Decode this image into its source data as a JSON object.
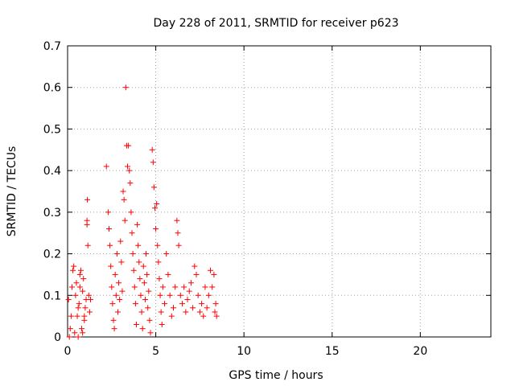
{
  "chart_data": {
    "type": "scatter",
    "title": "Day 228 of 2011, SRMTID for receiver p623",
    "xlabel": "GPS time / hours",
    "ylabel": "SRMTID / TECUs",
    "xlim": [
      0,
      24
    ],
    "ylim": [
      0,
      0.7
    ],
    "xticks": [
      0,
      5,
      10,
      15,
      20
    ],
    "xtick_labels": [
      "0",
      "5",
      "10",
      "15",
      "20"
    ],
    "yticks": [
      0,
      0.1,
      0.2,
      0.3,
      0.4,
      0.5,
      0.6,
      0.7
    ],
    "ytick_labels": [
      "0",
      "0.1",
      "0.2",
      "0.3",
      "0.4",
      "0.5",
      "0.6",
      "0.7"
    ],
    "grid": true,
    "marker": "+",
    "color": "#ff0000",
    "series": [
      {
        "name": "SRMTID",
        "points": [
          [
            0.05,
            0.09
          ],
          [
            0.1,
            0.0
          ],
          [
            0.15,
            0.02
          ],
          [
            0.2,
            0.05
          ],
          [
            0.25,
            0.12
          ],
          [
            0.3,
            0.16
          ],
          [
            0.35,
            0.17
          ],
          [
            0.4,
            0.01
          ],
          [
            0.45,
            0.1
          ],
          [
            0.5,
            0.13
          ],
          [
            0.55,
            0.05
          ],
          [
            0.6,
            0.0
          ],
          [
            0.65,
            0.08
          ],
          [
            0.7,
            0.15
          ],
          [
            0.75,
            0.16
          ],
          [
            0.8,
            0.02
          ],
          [
            0.85,
            0.11
          ],
          [
            0.9,
            0.14
          ],
          [
            0.95,
            0.05
          ],
          [
            1.0,
            0.07
          ],
          [
            1.05,
            0.09
          ],
          [
            1.1,
            0.27
          ],
          [
            1.1,
            0.28
          ],
          [
            1.12,
            0.33
          ],
          [
            1.15,
            0.22
          ],
          [
            1.2,
            0.1
          ],
          [
            1.25,
            0.06
          ],
          [
            1.3,
            0.09
          ],
          [
            0.95,
            0.04
          ],
          [
            0.85,
            0.01
          ],
          [
            0.7,
            0.12
          ],
          [
            0.6,
            0.07
          ],
          [
            2.2,
            0.41
          ],
          [
            2.3,
            0.3
          ],
          [
            2.35,
            0.26
          ],
          [
            2.4,
            0.22
          ],
          [
            2.45,
            0.17
          ],
          [
            2.5,
            0.12
          ],
          [
            2.55,
            0.08
          ],
          [
            2.6,
            0.04
          ],
          [
            2.65,
            0.02
          ],
          [
            2.7,
            0.15
          ],
          [
            2.75,
            0.1
          ],
          [
            2.8,
            0.2
          ],
          [
            2.85,
            0.06
          ],
          [
            2.9,
            0.13
          ],
          [
            2.95,
            0.09
          ],
          [
            3.0,
            0.23
          ],
          [
            3.05,
            0.18
          ],
          [
            3.1,
            0.11
          ],
          [
            3.15,
            0.35
          ],
          [
            3.2,
            0.33
          ],
          [
            3.25,
            0.28
          ],
          [
            3.3,
            0.6
          ],
          [
            3.35,
            0.46
          ],
          [
            3.4,
            0.41
          ],
          [
            3.45,
            0.46
          ],
          [
            3.5,
            0.4
          ],
          [
            3.55,
            0.37
          ],
          [
            3.6,
            0.3
          ],
          [
            3.65,
            0.25
          ],
          [
            3.7,
            0.2
          ],
          [
            3.75,
            0.16
          ],
          [
            3.8,
            0.12
          ],
          [
            3.85,
            0.08
          ],
          [
            3.9,
            0.03
          ],
          [
            3.95,
            0.27
          ],
          [
            4.0,
            0.22
          ],
          [
            4.05,
            0.18
          ],
          [
            4.1,
            0.14
          ],
          [
            4.15,
            0.1
          ],
          [
            4.2,
            0.06
          ],
          [
            4.25,
            0.02
          ],
          [
            4.3,
            0.17
          ],
          [
            4.35,
            0.13
          ],
          [
            4.4,
            0.09
          ],
          [
            4.45,
            0.2
          ],
          [
            4.5,
            0.15
          ],
          [
            4.55,
            0.07
          ],
          [
            4.6,
            0.11
          ],
          [
            4.65,
            0.04
          ],
          [
            4.7,
            0.01
          ],
          [
            4.8,
            0.45
          ],
          [
            4.85,
            0.42
          ],
          [
            4.9,
            0.36
          ],
          [
            4.95,
            0.31
          ],
          [
            5.0,
            0.26
          ],
          [
            5.05,
            0.32
          ],
          [
            5.1,
            0.22
          ],
          [
            5.15,
            0.18
          ],
          [
            5.2,
            0.14
          ],
          [
            5.25,
            0.1
          ],
          [
            5.3,
            0.06
          ],
          [
            5.35,
            0.03
          ],
          [
            5.4,
            0.12
          ],
          [
            5.5,
            0.08
          ],
          [
            5.6,
            0.2
          ],
          [
            5.7,
            0.15
          ],
          [
            5.8,
            0.1
          ],
          [
            5.9,
            0.05
          ],
          [
            6.0,
            0.07
          ],
          [
            6.1,
            0.12
          ],
          [
            6.2,
            0.28
          ],
          [
            6.25,
            0.25
          ],
          [
            6.3,
            0.22
          ],
          [
            6.4,
            0.1
          ],
          [
            6.5,
            0.08
          ],
          [
            6.6,
            0.12
          ],
          [
            6.7,
            0.06
          ],
          [
            6.8,
            0.09
          ],
          [
            6.9,
            0.11
          ],
          [
            7.0,
            0.13
          ],
          [
            7.1,
            0.07
          ],
          [
            7.2,
            0.17
          ],
          [
            7.3,
            0.15
          ],
          [
            7.4,
            0.1
          ],
          [
            7.5,
            0.06
          ],
          [
            7.6,
            0.08
          ],
          [
            7.7,
            0.05
          ],
          [
            7.8,
            0.12
          ],
          [
            7.9,
            0.07
          ],
          [
            8.0,
            0.1
          ],
          [
            8.1,
            0.16
          ],
          [
            8.2,
            0.12
          ],
          [
            8.3,
            0.15
          ],
          [
            8.4,
            0.08
          ],
          [
            8.45,
            0.05
          ],
          [
            8.35,
            0.06
          ]
        ]
      }
    ]
  }
}
